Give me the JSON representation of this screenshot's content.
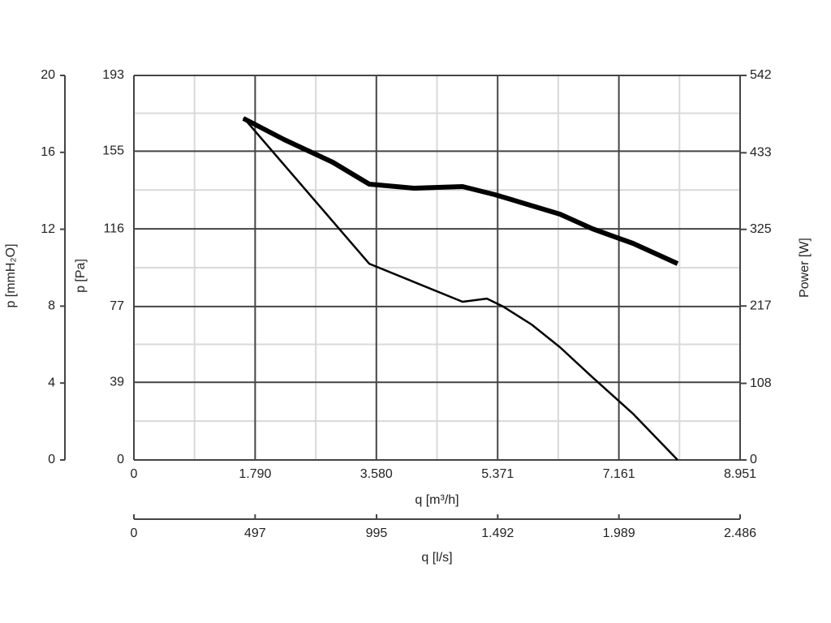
{
  "chart_data": {
    "type": "line",
    "xlabel": "q [m³/h]",
    "xlim": [
      0,
      8951
    ],
    "xticks": [
      0,
      {
        "value": 1790,
        "label": "1.790"
      },
      {
        "value": 3580,
        "label": "3.580"
      },
      {
        "value": 5371,
        "label": "5.371"
      },
      {
        "value": 7161,
        "label": "7.161"
      },
      {
        "value": 8951,
        "label": "8.951"
      }
    ],
    "ylabel": "p [Pa]",
    "ylim": [
      0,
      193
    ],
    "yticks": [
      0,
      39,
      77,
      116,
      155,
      193
    ],
    "y2label": "Power [W]",
    "y2lim": [
      0,
      542
    ],
    "y2ticks": [
      0,
      108,
      217,
      325,
      433,
      542
    ],
    "y_mmh2o": {
      "label": "p [mmH₂O]",
      "lim": [
        0,
        20
      ],
      "ticks": [
        0,
        4,
        8,
        12,
        16,
        20
      ]
    },
    "x_ls": {
      "label": "q [l/s]",
      "lim": [
        0,
        2486
      ],
      "ticks": [
        0,
        497,
        995,
        {
          "value": 1492,
          "label": "1.492"
        },
        {
          "value": 1989,
          "label": "1.989"
        },
        {
          "value": 2486,
          "label": "2.486"
        }
      ]
    },
    "grid": true,
    "series": [
      {
        "color": "#000000",
        "x": [
          1618,
          3475,
          4853,
          5212,
          5452,
          5871,
          6291,
          6770,
          7369,
          8028
        ],
        "values": [
          171.8,
          98.5,
          79.4,
          81.0,
          77.0,
          68.0,
          56.6,
          41.5,
          23.2,
          0
        ]
      },
      {
        "color": "#000000",
        "axis": "y2",
        "x": [
          1618,
          2217,
          2936,
          3475,
          4134,
          4853,
          5332,
          5812,
          6291,
          6770,
          7369,
          8028
        ],
        "values": [
          481.4,
          451.7,
          419.7,
          388.8,
          383.1,
          385.4,
          373.9,
          360.2,
          346.5,
          325.9,
          305.3,
          276.7
        ]
      }
    ]
  }
}
